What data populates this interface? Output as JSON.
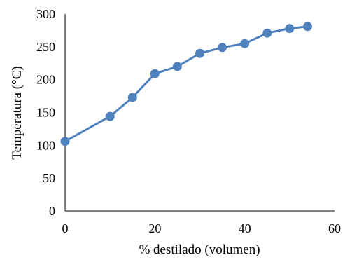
{
  "chart_data": {
    "type": "line",
    "title": "",
    "xlabel": "% destilado (volumen)",
    "ylabel": "Temperatura (°C)",
    "xlim": [
      0,
      60
    ],
    "ylim": [
      0,
      300
    ],
    "x_ticks": [
      "0",
      "20",
      "40",
      "60"
    ],
    "y_ticks": [
      "0",
      "50",
      "100",
      "150",
      "200",
      "250",
      "300"
    ],
    "grid": false,
    "legend": "none",
    "series": [
      {
        "color": "#4f81bd",
        "x": [
          0,
          10,
          15,
          20,
          25,
          30,
          35,
          40,
          45,
          50,
          54
        ],
        "y": [
          106,
          144,
          173,
          209,
          220,
          240,
          249,
          255,
          271,
          278,
          281
        ]
      }
    ]
  }
}
